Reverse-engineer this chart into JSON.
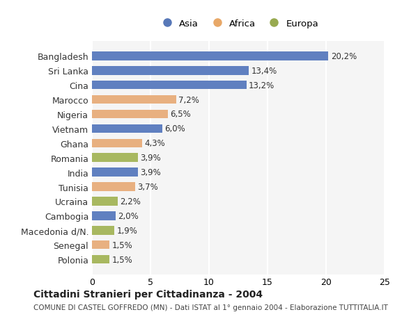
{
  "countries": [
    "Bangladesh",
    "Sri Lanka",
    "Cina",
    "Marocco",
    "Nigeria",
    "Vietnam",
    "Ghana",
    "Romania",
    "India",
    "Tunisia",
    "Ucraina",
    "Cambogia",
    "Macedonia d/N.",
    "Senegal",
    "Polonia"
  ],
  "values": [
    20.2,
    13.4,
    13.2,
    7.2,
    6.5,
    6.0,
    4.3,
    3.9,
    3.9,
    3.7,
    2.2,
    2.0,
    1.9,
    1.5,
    1.5
  ],
  "labels": [
    "20,2%",
    "13,4%",
    "13,2%",
    "7,2%",
    "6,5%",
    "6,0%",
    "4,3%",
    "3,9%",
    "3,9%",
    "3,7%",
    "2,2%",
    "2,0%",
    "1,9%",
    "1,5%",
    "1,5%"
  ],
  "continents": [
    "Asia",
    "Asia",
    "Asia",
    "Africa",
    "Africa",
    "Asia",
    "Africa",
    "Europa",
    "Asia",
    "Africa",
    "Europa",
    "Asia",
    "Europa",
    "Africa",
    "Europa"
  ],
  "colors": {
    "Asia": "#6080c0",
    "Africa": "#e8b080",
    "Europa": "#a8b860"
  },
  "legend_colors": {
    "Asia": "#5878b8",
    "Africa": "#e8a868",
    "Europa": "#98aa50"
  },
  "title": "Cittadini Stranieri per Cittadinanza - 2004",
  "subtitle": "COMUNE DI CASTEL GOFFREDO (MN) - Dati ISTAT al 1° gennaio 2004 - Elaborazione TUTTITALIA.IT",
  "xlim": [
    0,
    25
  ],
  "xticks": [
    0,
    5,
    10,
    15,
    20,
    25
  ],
  "bg_color": "#ffffff",
  "plot_bg_color": "#f5f5f5",
  "grid_color": "#ffffff"
}
